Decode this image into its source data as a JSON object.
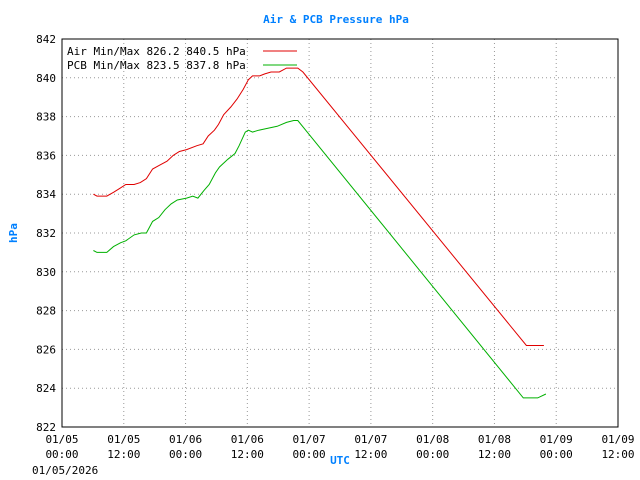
{
  "chart_data": {
    "type": "line",
    "title": "Air & PCB Pressure hPa",
    "xlabel": "UTC",
    "ylabel": "hPa",
    "date_label": "01/05/2026",
    "ylim": [
      822,
      842
    ],
    "yticks": [
      822,
      824,
      826,
      828,
      830,
      832,
      834,
      836,
      838,
      840,
      842
    ],
    "xticks": [
      {
        "line1": "01/05",
        "line2": "00:00"
      },
      {
        "line1": "01/05",
        "line2": "12:00"
      },
      {
        "line1": "01/06",
        "line2": "00:00"
      },
      {
        "line1": "01/06",
        "line2": "12:00"
      },
      {
        "line1": "01/07",
        "line2": "00:00"
      },
      {
        "line1": "01/07",
        "line2": "12:00"
      },
      {
        "line1": "01/08",
        "line2": "00:00"
      },
      {
        "line1": "01/08",
        "line2": "12:00"
      },
      {
        "line1": "01/09",
        "line2": "00:00"
      },
      {
        "line1": "01/09",
        "line2": "12:00"
      }
    ],
    "x_unit": "hours since 01/05 00:00",
    "xlim": [
      0,
      108
    ],
    "grid": true,
    "legend_position": "top-left",
    "series": [
      {
        "name": "Air",
        "legend": "Air Min/Max 826.2 840.5 hPa",
        "color": "#e00000",
        "points": [
          [
            6.1,
            834.0
          ],
          [
            6.8,
            833.9
          ],
          [
            8.7,
            833.9
          ],
          [
            10.0,
            834.1
          ],
          [
            11.2,
            834.3
          ],
          [
            12.4,
            834.5
          ],
          [
            14.0,
            834.5
          ],
          [
            15.2,
            834.6
          ],
          [
            16.4,
            834.8
          ],
          [
            17.6,
            835.3
          ],
          [
            19.0,
            835.5
          ],
          [
            20.4,
            835.7
          ],
          [
            21.6,
            836.0
          ],
          [
            22.8,
            836.2
          ],
          [
            24.2,
            836.3
          ],
          [
            26.2,
            836.5
          ],
          [
            27.4,
            836.6
          ],
          [
            28.4,
            837.0
          ],
          [
            29.6,
            837.3
          ],
          [
            30.4,
            837.6
          ],
          [
            31.4,
            838.1
          ],
          [
            32.8,
            838.5
          ],
          [
            34.0,
            838.9
          ],
          [
            35.2,
            839.4
          ],
          [
            36.2,
            839.9
          ],
          [
            37.0,
            840.1
          ],
          [
            38.4,
            840.1
          ],
          [
            39.4,
            840.2
          ],
          [
            40.6,
            840.3
          ],
          [
            42.2,
            840.3
          ],
          [
            43.6,
            840.5
          ],
          [
            45.8,
            840.5
          ],
          [
            46.8,
            840.3
          ],
          [
            90.2,
            826.2
          ],
          [
            93.6,
            826.2
          ]
        ]
      },
      {
        "name": "PCB",
        "legend": "PCB Min/Max 823.5 837.8 hPa",
        "color": "#00b000",
        "points": [
          [
            6.1,
            831.1
          ],
          [
            6.8,
            831.0
          ],
          [
            8.7,
            831.0
          ],
          [
            10.0,
            831.3
          ],
          [
            11.4,
            831.5
          ],
          [
            12.4,
            831.6
          ],
          [
            14.0,
            831.9
          ],
          [
            15.4,
            832.0
          ],
          [
            16.4,
            832.0
          ],
          [
            17.6,
            832.6
          ],
          [
            18.8,
            832.8
          ],
          [
            20.0,
            833.2
          ],
          [
            21.2,
            833.5
          ],
          [
            22.4,
            833.7
          ],
          [
            24.2,
            833.8
          ],
          [
            25.4,
            833.9
          ],
          [
            26.4,
            833.8
          ],
          [
            27.6,
            834.2
          ],
          [
            28.6,
            834.5
          ],
          [
            29.8,
            835.1
          ],
          [
            30.6,
            835.4
          ],
          [
            32.2,
            835.8
          ],
          [
            33.6,
            836.1
          ],
          [
            34.4,
            836.5
          ],
          [
            35.6,
            837.2
          ],
          [
            36.2,
            837.3
          ],
          [
            37.0,
            837.2
          ],
          [
            38.2,
            837.3
          ],
          [
            40.0,
            837.4
          ],
          [
            41.8,
            837.5
          ],
          [
            43.6,
            837.7
          ],
          [
            45.0,
            837.8
          ],
          [
            45.8,
            837.8
          ],
          [
            89.6,
            823.5
          ],
          [
            92.4,
            823.5
          ],
          [
            94.0,
            823.7
          ]
        ]
      }
    ]
  },
  "colors": {
    "title": "#0080ff",
    "axis_label": "#0080ff",
    "grid": "#999999",
    "frame": "#000000",
    "background": "#ffffff"
  }
}
